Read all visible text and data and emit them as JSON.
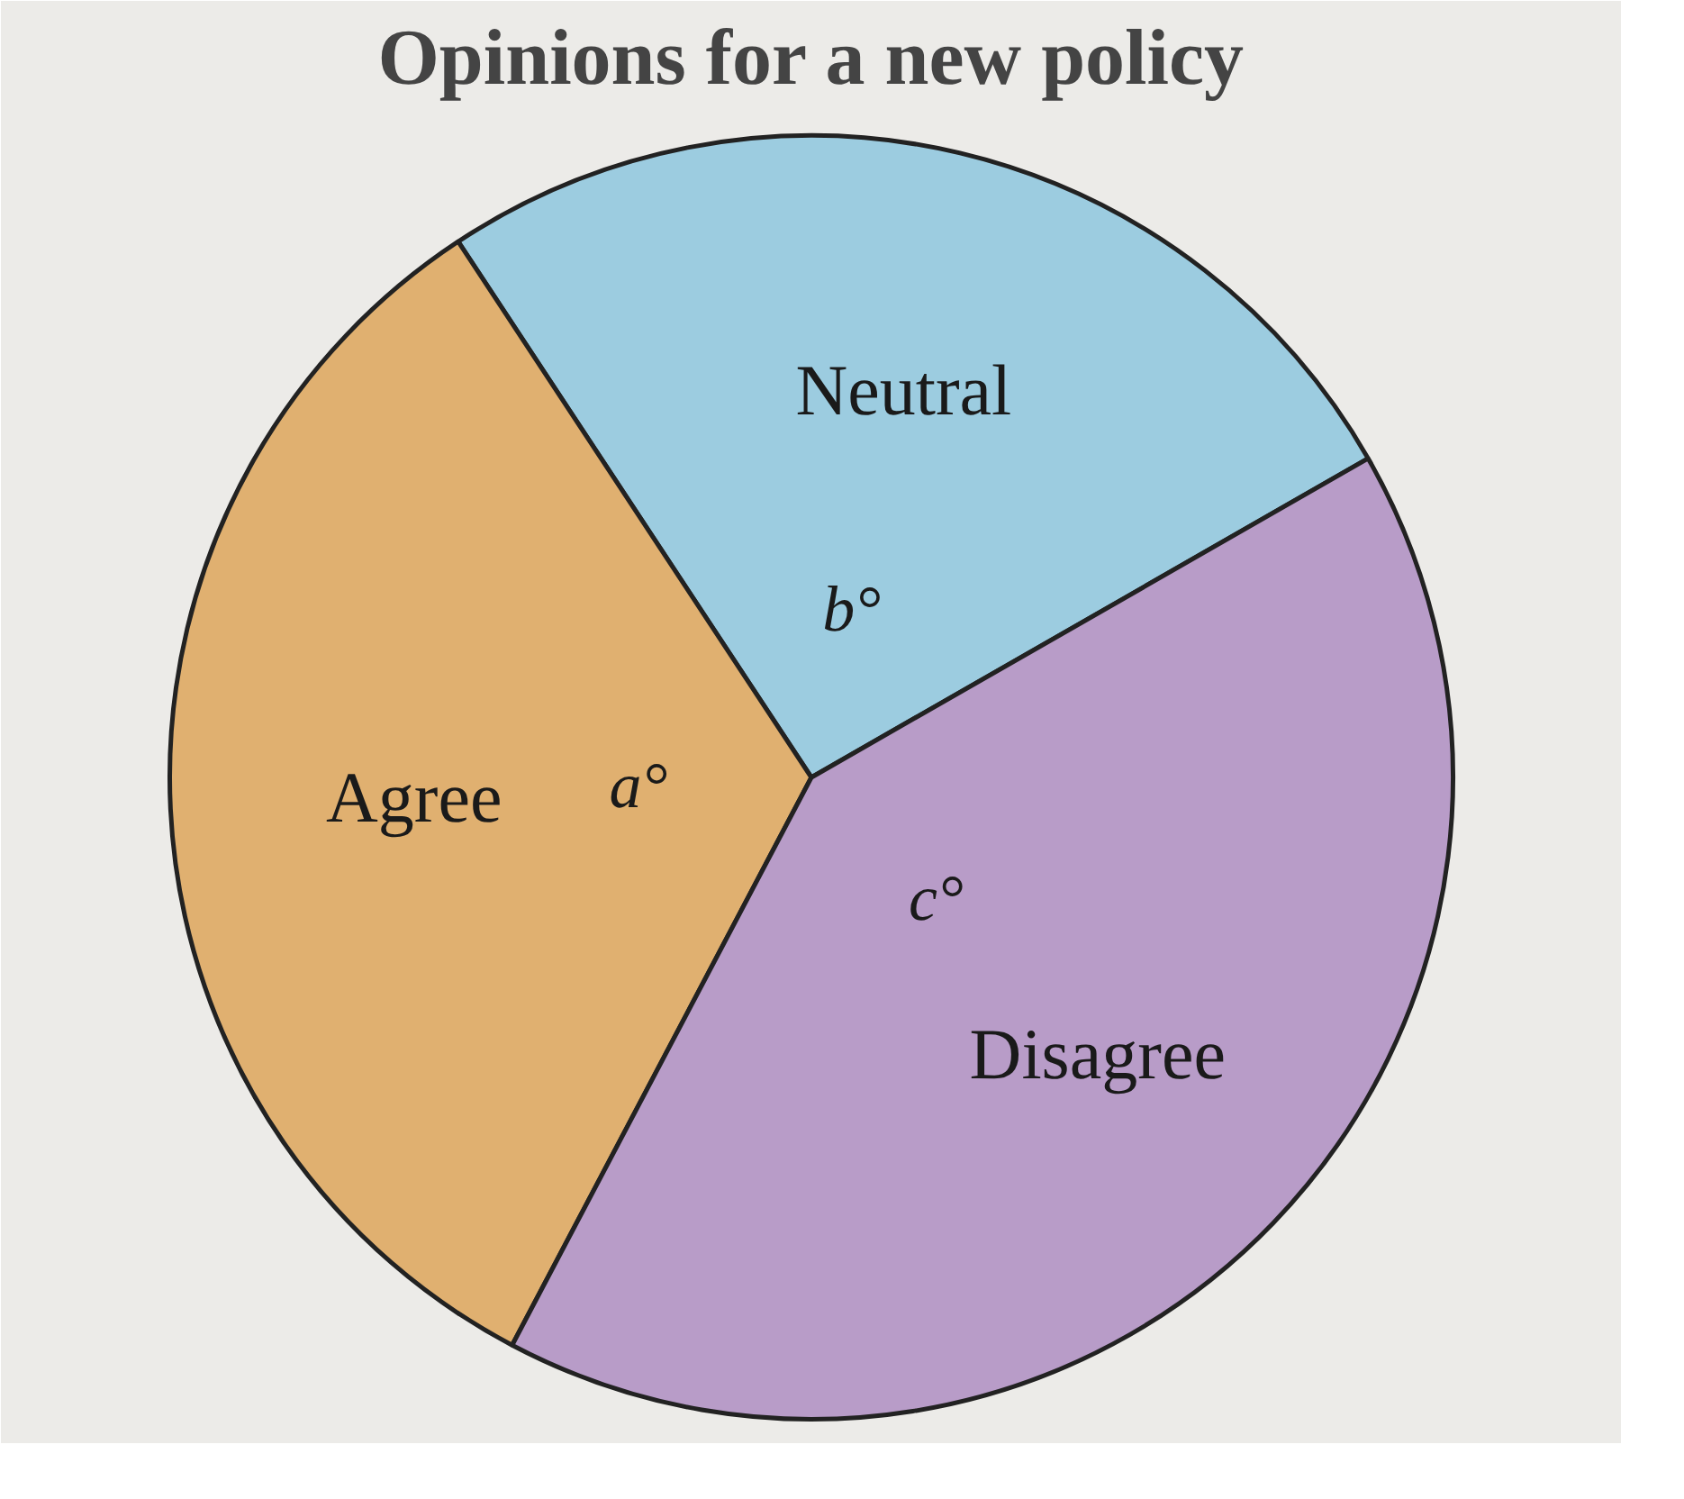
{
  "chart_data": {
    "type": "pie",
    "title": "Opinions for a new policy",
    "categories": [
      "Neutral",
      "Agree",
      "Disagree"
    ],
    "values": [
      26,
      33,
      41
    ],
    "colors": [
      "#9ccce0",
      "#e0b070",
      "#b89cc8"
    ],
    "annotations": [
      "b°",
      "a°",
      "c°"
    ]
  }
}
